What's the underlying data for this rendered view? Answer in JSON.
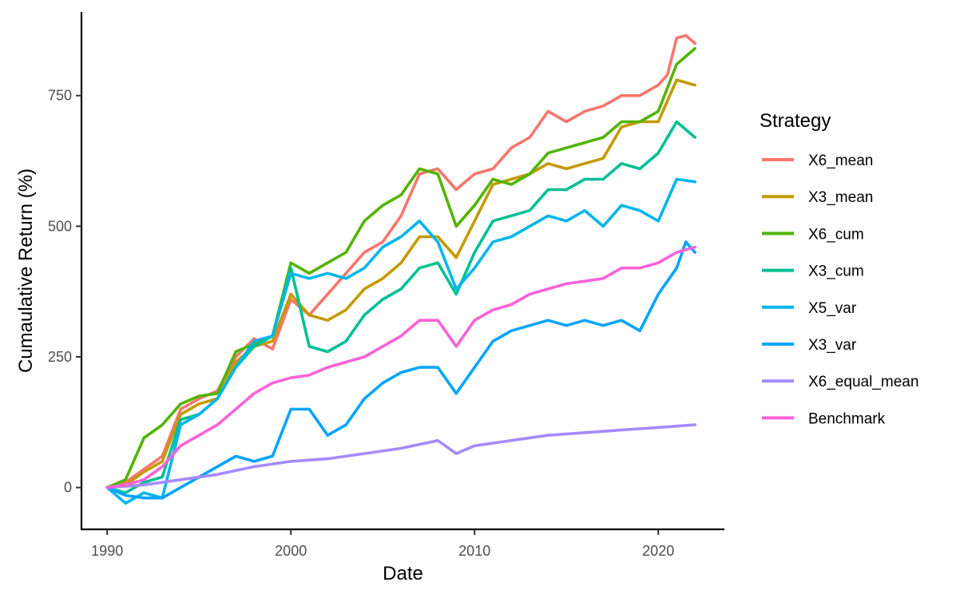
{
  "chart_data": {
    "type": "line",
    "xlabel": "Date",
    "ylabel": "Cumaulative Return (%)",
    "xlim": [
      1988.6,
      2023.6
    ],
    "ylim": [
      -80,
      910
    ],
    "x_ticks": [
      1990,
      2000,
      2010,
      2020
    ],
    "y_ticks": [
      0,
      250,
      500,
      750
    ],
    "legend": {
      "title": "Strategy",
      "placement": "right"
    },
    "series": [
      {
        "name": "X6_mean",
        "color": "#F8766D",
        "x": [
          1990,
          1991,
          1992,
          1993,
          1994,
          1995,
          1996,
          1997,
          1998,
          1999,
          2000,
          2001,
          2002,
          2003,
          2004,
          2005,
          2006,
          2007,
          2008,
          2009,
          2010,
          2011,
          2012,
          2013,
          2014,
          2015,
          2016,
          2017,
          2018,
          2019,
          2020,
          2020.5,
          2021,
          2021.5,
          2022
        ],
        "y": [
          0,
          10,
          35,
          60,
          150,
          170,
          185,
          250,
          285,
          265,
          360,
          330,
          370,
          410,
          450,
          470,
          520,
          600,
          610,
          570,
          600,
          610,
          650,
          670,
          720,
          700,
          720,
          730,
          750,
          750,
          770,
          790,
          860,
          865,
          850
        ]
      },
      {
        "name": "X3_mean",
        "color": "#C49A00",
        "x": [
          1990,
          1991,
          1992,
          1993,
          1994,
          1995,
          1996,
          1997,
          1998,
          1999,
          2000,
          2001,
          2002,
          2003,
          2004,
          2005,
          2006,
          2007,
          2008,
          2009,
          2010,
          2011,
          2012,
          2013,
          2014,
          2015,
          2016,
          2017,
          2018,
          2019,
          2020,
          2021,
          2022
        ],
        "y": [
          0,
          5,
          30,
          50,
          140,
          160,
          170,
          240,
          270,
          280,
          370,
          330,
          320,
          340,
          380,
          400,
          430,
          480,
          480,
          440,
          510,
          580,
          590,
          600,
          620,
          610,
          620,
          630,
          690,
          700,
          700,
          780,
          770
        ]
      },
      {
        "name": "X6_cum",
        "color": "#53B400",
        "x": [
          1990,
          1991,
          1992,
          1993,
          1994,
          1995,
          1996,
          1997,
          1998,
          1999,
          2000,
          2001,
          2002,
          2003,
          2004,
          2005,
          2006,
          2007,
          2008,
          2009,
          2010,
          2011,
          2012,
          2013,
          2014,
          2015,
          2016,
          2017,
          2018,
          2019,
          2020,
          2021,
          2022
        ],
        "y": [
          0,
          15,
          95,
          120,
          160,
          175,
          180,
          260,
          275,
          290,
          430,
          410,
          430,
          450,
          510,
          540,
          560,
          610,
          600,
          500,
          540,
          590,
          580,
          600,
          640,
          650,
          660,
          670,
          700,
          700,
          720,
          810,
          840
        ]
      },
      {
        "name": "X3_cum",
        "color": "#00C094",
        "x": [
          1990,
          1991,
          1992,
          1993,
          1994,
          1995,
          1996,
          1997,
          1998,
          1999,
          2000,
          2001,
          2002,
          2003,
          2004,
          2005,
          2006,
          2007,
          2008,
          2009,
          2010,
          2011,
          2012,
          2013,
          2014,
          2015,
          2016,
          2017,
          2018,
          2019,
          2020,
          2021,
          2022
        ],
        "y": [
          0,
          -10,
          10,
          20,
          130,
          140,
          170,
          230,
          270,
          290,
          420,
          270,
          260,
          280,
          330,
          360,
          380,
          420,
          430,
          370,
          450,
          510,
          520,
          530,
          570,
          570,
          590,
          590,
          620,
          610,
          640,
          700,
          670
        ]
      },
      {
        "name": "X5_var",
        "color": "#00B6EB",
        "x": [
          1990,
          1991,
          1992,
          1993,
          1994,
          1995,
          1996,
          1997,
          1998,
          1999,
          2000,
          2001,
          2002,
          2003,
          2004,
          2005,
          2006,
          2007,
          2008,
          2009,
          2010,
          2011,
          2012,
          2013,
          2014,
          2015,
          2016,
          2017,
          2018,
          2019,
          2020,
          2021,
          2022
        ],
        "y": [
          0,
          -30,
          -10,
          -20,
          120,
          140,
          170,
          230,
          280,
          290,
          410,
          400,
          410,
          400,
          420,
          460,
          480,
          510,
          470,
          380,
          420,
          470,
          480,
          500,
          520,
          510,
          530,
          500,
          540,
          530,
          510,
          590,
          585
        ]
      },
      {
        "name": "X3_var",
        "color": "#06A4FF",
        "x": [
          1990,
          1991,
          1992,
          1993,
          1994,
          1995,
          1996,
          1997,
          1998,
          1999,
          2000,
          2001,
          2002,
          2003,
          2004,
          2005,
          2006,
          2007,
          2008,
          2009,
          2010,
          2011,
          2012,
          2013,
          2014,
          2015,
          2016,
          2017,
          2018,
          2019,
          2020,
          2021,
          2021.5,
          2022
        ],
        "y": [
          0,
          -15,
          -20,
          -20,
          0,
          20,
          40,
          60,
          50,
          60,
          150,
          150,
          100,
          120,
          170,
          200,
          220,
          230,
          230,
          180,
          230,
          280,
          300,
          310,
          320,
          310,
          320,
          310,
          320,
          300,
          370,
          420,
          470,
          450
        ]
      },
      {
        "name": "X6_equal_mean",
        "color": "#A58AFF",
        "x": [
          1990,
          1992,
          1994,
          1996,
          1998,
          2000,
          2002,
          2004,
          2006,
          2008,
          2009,
          2010,
          2012,
          2014,
          2016,
          2018,
          2020,
          2022
        ],
        "y": [
          0,
          5,
          15,
          25,
          40,
          50,
          55,
          65,
          75,
          90,
          65,
          80,
          90,
          100,
          105,
          110,
          115,
          120
        ]
      },
      {
        "name": "Benchmark",
        "color": "#FB61D7",
        "x": [
          1990,
          1991,
          1992,
          1993,
          1994,
          1995,
          1996,
          1997,
          1998,
          1999,
          2000,
          2001,
          2002,
          2003,
          2004,
          2005,
          2006,
          2007,
          2008,
          2009,
          2010,
          2011,
          2012,
          2013,
          2014,
          2015,
          2016,
          2017,
          2018,
          2019,
          2020,
          2021,
          2022
        ],
        "y": [
          0,
          5,
          15,
          40,
          80,
          100,
          120,
          150,
          180,
          200,
          210,
          215,
          230,
          240,
          250,
          270,
          290,
          320,
          320,
          270,
          320,
          340,
          350,
          370,
          380,
          390,
          395,
          400,
          420,
          420,
          430,
          450,
          460
        ]
      }
    ]
  }
}
